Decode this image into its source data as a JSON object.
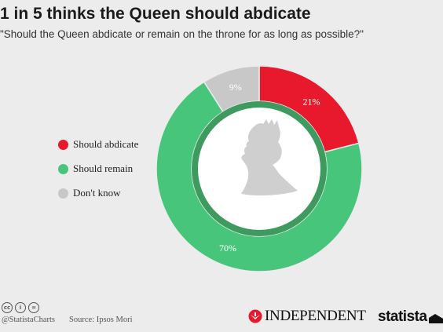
{
  "header": {
    "title": "1 in 5 thinks the Queen should abdicate",
    "subtitle": "\"Should the Queen abdicate or remain on the throne for as long as possible?\""
  },
  "legend": {
    "items": [
      {
        "label": "Should abdicate",
        "color": "#e8192c"
      },
      {
        "label": "Should remain",
        "color": "#47c57b"
      },
      {
        "label": "Don't know",
        "color": "#c8c8c8"
      }
    ]
  },
  "chart_data": {
    "type": "pie",
    "donut": true,
    "categories": [
      "Should abdicate",
      "Should remain",
      "Don't know"
    ],
    "values": [
      21,
      70,
      9
    ],
    "labels": [
      "21%",
      "70%",
      "9%"
    ],
    "colors": [
      "#e8192c",
      "#47c57b",
      "#c8c8c8"
    ],
    "inner_ring_color": "#3e9a5f",
    "center_icon": "queen-silhouette-icon",
    "title": "1 in 5 thinks the Queen should abdicate",
    "legend_position": "left"
  },
  "footer": {
    "cc_icons": [
      "cc-icon",
      "by-icon",
      "nd-icon"
    ],
    "cc_glyphs": [
      "cc",
      "i",
      "="
    ],
    "handle": "@StatistaCharts",
    "source": "Source: Ipsos Mori",
    "independent_logo": "INDEPENDENT",
    "statista_logo": "statista"
  }
}
